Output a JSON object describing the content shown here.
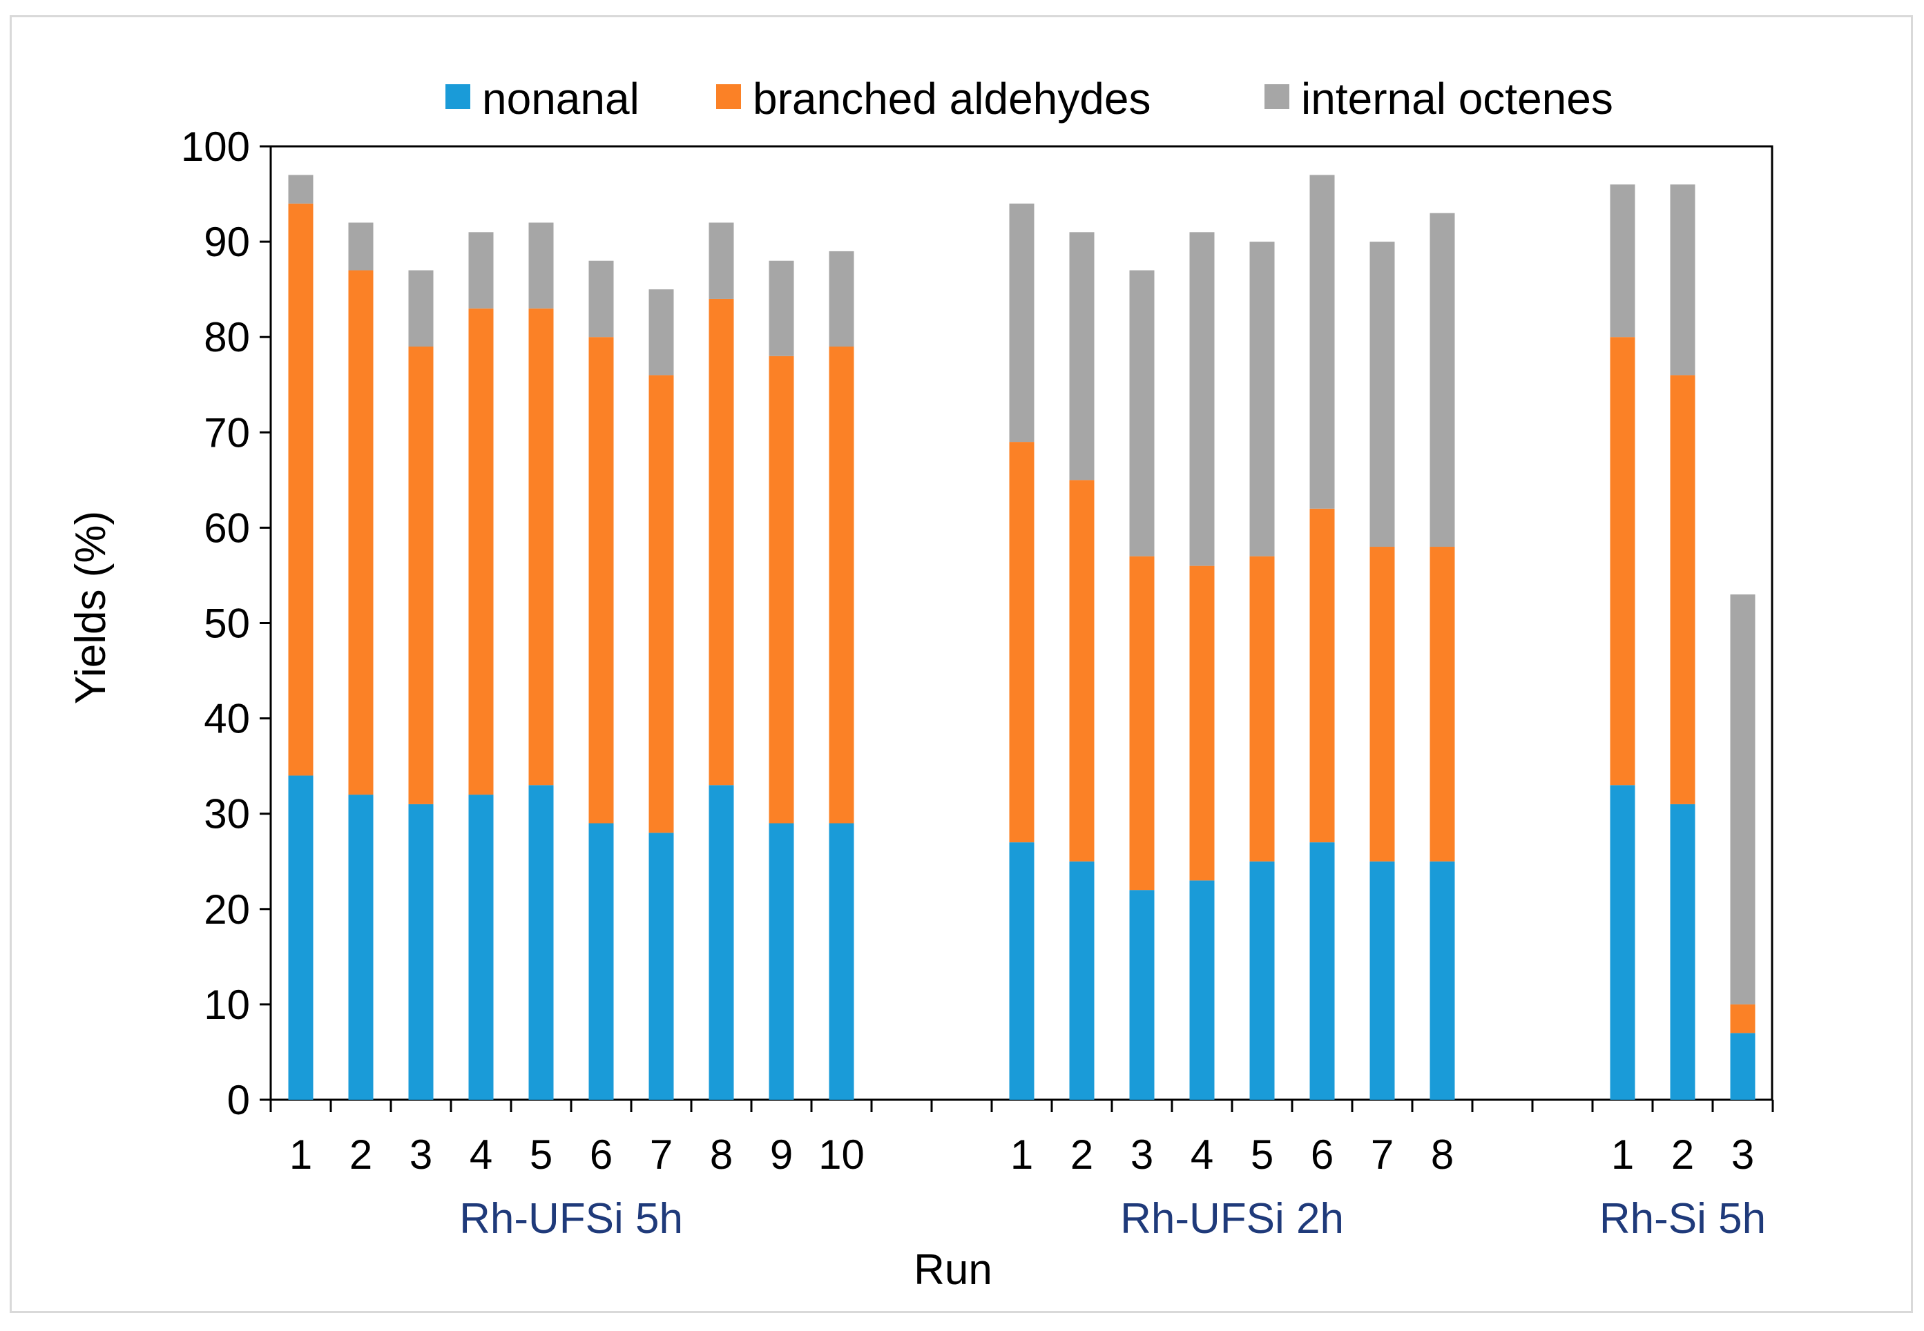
{
  "chart_data": {
    "type": "bar",
    "stacked": true,
    "title": "",
    "xlabel": "Run",
    "ylabel": "Yields  (%)",
    "ylim": [
      0,
      100
    ],
    "yticks": [
      0,
      10,
      20,
      30,
      40,
      50,
      60,
      70,
      80,
      90,
      100
    ],
    "legend_position": "top",
    "colors": {
      "nonanal": "#1a9bd8",
      "branched aldehydes": "#fb8126",
      "internal octenes": "#a6a6a6"
    },
    "series_names": [
      "nonanal",
      "branched aldehydes",
      "internal octenes"
    ],
    "groups": [
      {
        "name": "Rh-UFSi 5h",
        "categories": [
          "1",
          "2",
          "3",
          "4",
          "5",
          "6",
          "7",
          "8",
          "9",
          "10"
        ],
        "series": [
          {
            "name": "nonanal",
            "values": [
              34,
              32,
              31,
              32,
              33,
              29,
              28,
              33,
              29,
              29
            ]
          },
          {
            "name": "branched aldehydes",
            "values": [
              60,
              55,
              48,
              51,
              50,
              51,
              48,
              51,
              49,
              50
            ]
          },
          {
            "name": "internal octenes",
            "values": [
              3,
              5,
              8,
              8,
              9,
              8,
              9,
              8,
              10,
              10
            ]
          }
        ]
      },
      {
        "name": "Rh-UFSi 2h",
        "categories": [
          "1",
          "2",
          "3",
          "4",
          "5",
          "6",
          "7",
          "8"
        ],
        "series": [
          {
            "name": "nonanal",
            "values": [
              27,
              25,
              22,
              23,
              25,
              27,
              25,
              25
            ]
          },
          {
            "name": "branched aldehydes",
            "values": [
              42,
              40,
              35,
              33,
              32,
              35,
              33,
              33
            ]
          },
          {
            "name": "internal octenes",
            "values": [
              25,
              26,
              30,
              35,
              33,
              35,
              32,
              35
            ]
          }
        ]
      },
      {
        "name": "Rh-Si 5h",
        "categories": [
          "1",
          "2",
          "3"
        ],
        "series": [
          {
            "name": "nonanal",
            "values": [
              33,
              31,
              7
            ]
          },
          {
            "name": "branched aldehydes",
            "values": [
              47,
              45,
              3
            ]
          },
          {
            "name": "internal octenes",
            "values": [
              16,
              20,
              43
            ]
          }
        ]
      }
    ]
  }
}
